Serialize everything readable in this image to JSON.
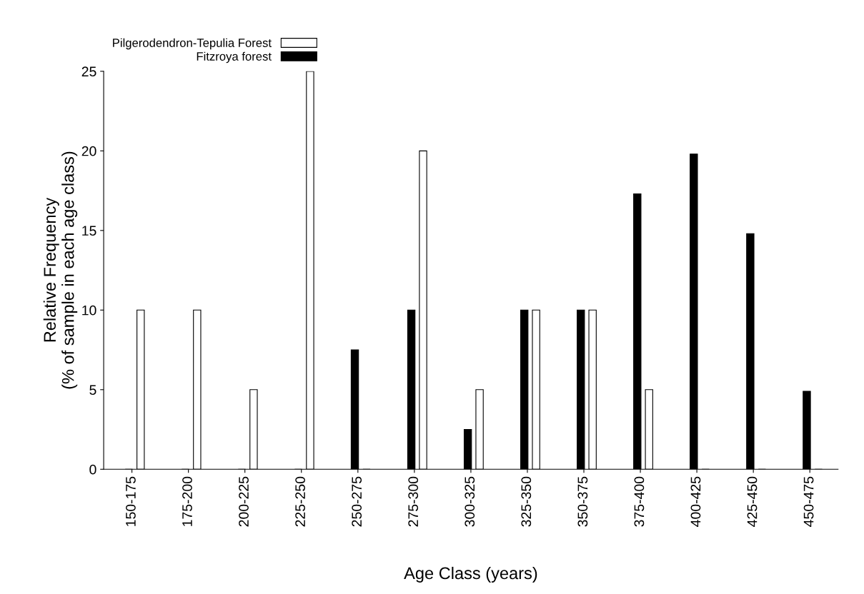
{
  "chart_data": {
    "type": "bar",
    "xlabel": "Age Class (years)",
    "ylabel": "Relative Frequency\n(% of sample in each age class)",
    "categories": [
      "150-175",
      "175-200",
      "200-225",
      "225-250",
      "250-275",
      "275-300",
      "300-325",
      "325-350",
      "350-375",
      "375-400",
      "400-425",
      "425-450",
      "450-475"
    ],
    "series": [
      {
        "name": "Pilgerodendron-Tepulia Forest",
        "color": "#ffffff",
        "values": [
          10,
          10,
          5,
          25,
          0,
          20,
          5,
          10,
          10,
          5,
          0,
          0,
          0
        ]
      },
      {
        "name": "Fitzroya forest",
        "color": "#000000",
        "values": [
          0,
          0,
          0,
          0,
          7.5,
          10,
          2.5,
          10,
          10,
          17.3,
          19.8,
          14.8,
          4.9
        ]
      }
    ],
    "ylim": [
      0,
      25
    ],
    "yticks": [
      0,
      5,
      10,
      15,
      20,
      25
    ],
    "grid": false,
    "legend": "top left"
  }
}
